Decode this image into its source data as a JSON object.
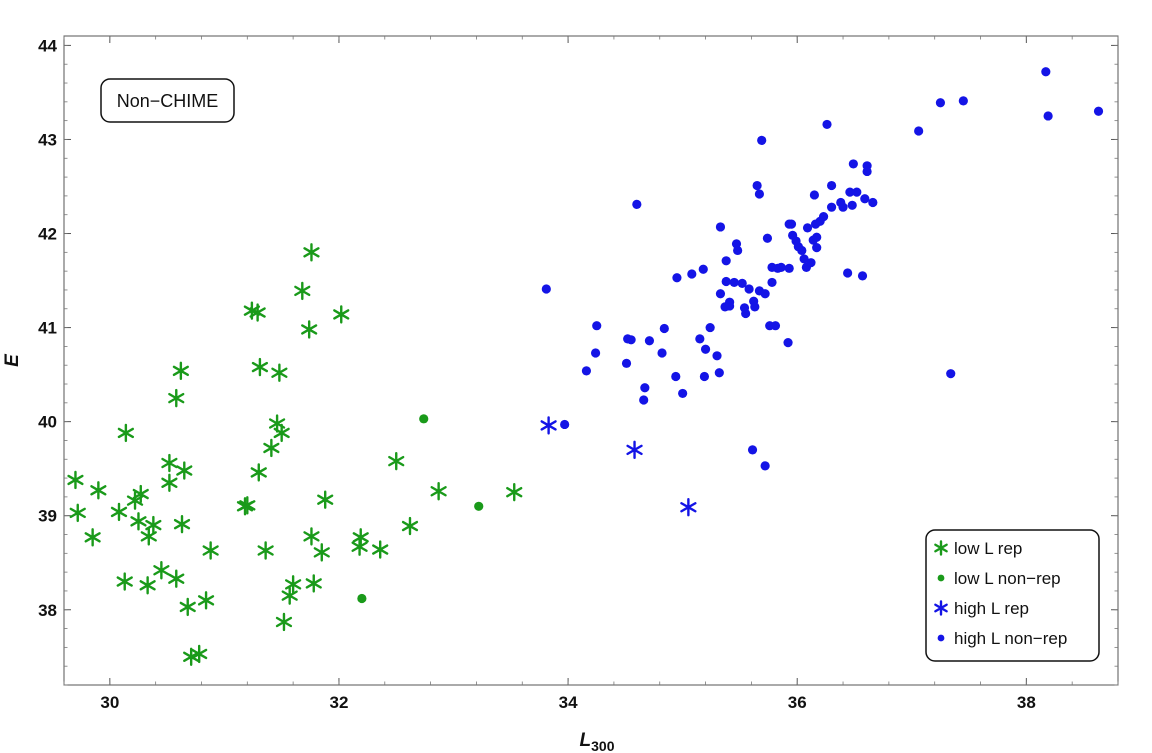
{
  "chart_data": {
    "type": "scatter",
    "title": "",
    "annotation": "Non−CHIME",
    "xlabel": "L",
    "xlabel_sub": "300",
    "ylabel": "E",
    "xlim": [
      29.6,
      38.8
    ],
    "ylim": [
      37.2,
      44.1
    ],
    "xticks": [
      30,
      32,
      34,
      36,
      38
    ],
    "yticks": [
      38,
      39,
      40,
      41,
      42,
      43,
      44
    ],
    "grid": false,
    "legend_position": "bottom-right",
    "series": [
      {
        "name": "low L rep",
        "marker": "star",
        "color": "#1a9a1a",
        "points": [
          [
            29.7,
            39.38
          ],
          [
            29.72,
            39.03
          ],
          [
            29.85,
            38.77
          ],
          [
            29.9,
            39.27
          ],
          [
            30.08,
            39.04
          ],
          [
            30.13,
            38.3
          ],
          [
            30.14,
            39.88
          ],
          [
            30.22,
            39.16
          ],
          [
            30.25,
            38.94
          ],
          [
            30.27,
            39.23
          ],
          [
            30.33,
            38.26
          ],
          [
            30.34,
            38.78
          ],
          [
            30.38,
            38.9
          ],
          [
            30.45,
            38.42
          ],
          [
            30.52,
            39.56
          ],
          [
            30.52,
            39.35
          ],
          [
            30.58,
            38.33
          ],
          [
            30.58,
            40.25
          ],
          [
            30.62,
            40.54
          ],
          [
            30.63,
            38.91
          ],
          [
            30.65,
            39.48
          ],
          [
            30.68,
            38.03
          ],
          [
            30.71,
            37.5
          ],
          [
            30.78,
            37.53
          ],
          [
            30.84,
            38.1
          ],
          [
            30.88,
            38.63
          ],
          [
            31.18,
            39.1
          ],
          [
            31.2,
            39.11
          ],
          [
            31.24,
            41.18
          ],
          [
            31.29,
            41.16
          ],
          [
            31.3,
            39.46
          ],
          [
            31.31,
            40.58
          ],
          [
            31.36,
            38.63
          ],
          [
            31.41,
            39.72
          ],
          [
            31.46,
            39.98
          ],
          [
            31.48,
            40.52
          ],
          [
            31.5,
            39.88
          ],
          [
            31.52,
            37.87
          ],
          [
            31.57,
            38.15
          ],
          [
            31.6,
            38.27
          ],
          [
            31.68,
            41.39
          ],
          [
            31.74,
            40.98
          ],
          [
            31.76,
            41.8
          ],
          [
            31.76,
            38.78
          ],
          [
            31.78,
            38.28
          ],
          [
            31.85,
            38.61
          ],
          [
            31.88,
            39.17
          ],
          [
            32.02,
            41.14
          ],
          [
            32.18,
            38.67
          ],
          [
            32.19,
            38.77
          ],
          [
            32.36,
            38.64
          ],
          [
            32.5,
            39.58
          ],
          [
            32.62,
            38.89
          ],
          [
            32.87,
            39.26
          ],
          [
            33.53,
            39.25
          ]
        ]
      },
      {
        "name": "low L non−rep",
        "marker": "dot",
        "color": "#1a9a1a",
        "points": [
          [
            32.2,
            38.12
          ],
          [
            32.74,
            40.03
          ],
          [
            33.22,
            39.1
          ]
        ]
      },
      {
        "name": "high L rep",
        "marker": "star",
        "color": "#1414e6",
        "points": [
          [
            33.83,
            39.96
          ],
          [
            34.58,
            39.7
          ],
          [
            35.05,
            39.09
          ]
        ]
      },
      {
        "name": "high L non−rep",
        "marker": "dot",
        "color": "#1414e6",
        "points": [
          [
            33.81,
            41.41
          ],
          [
            33.97,
            39.97
          ],
          [
            34.16,
            40.54
          ],
          [
            34.24,
            40.73
          ],
          [
            34.25,
            41.02
          ],
          [
            34.51,
            40.62
          ],
          [
            34.52,
            40.88
          ],
          [
            34.55,
            40.87
          ],
          [
            34.6,
            42.31
          ],
          [
            34.66,
            40.23
          ],
          [
            34.67,
            40.36
          ],
          [
            34.71,
            40.86
          ],
          [
            34.82,
            40.73
          ],
          [
            34.84,
            40.99
          ],
          [
            34.94,
            40.48
          ],
          [
            34.95,
            41.53
          ],
          [
            35.0,
            40.3
          ],
          [
            35.08,
            41.57
          ],
          [
            35.15,
            40.88
          ],
          [
            35.18,
            41.62
          ],
          [
            35.19,
            40.48
          ],
          [
            35.2,
            40.77
          ],
          [
            35.24,
            41.0
          ],
          [
            35.3,
            40.7
          ],
          [
            35.32,
            40.52
          ],
          [
            35.33,
            41.36
          ],
          [
            35.33,
            42.07
          ],
          [
            35.37,
            41.22
          ],
          [
            35.38,
            41.49
          ],
          [
            35.38,
            41.71
          ],
          [
            35.41,
            41.23
          ],
          [
            35.41,
            41.27
          ],
          [
            35.45,
            41.48
          ],
          [
            35.47,
            41.89
          ],
          [
            35.48,
            41.82
          ],
          [
            35.52,
            41.47
          ],
          [
            35.54,
            41.21
          ],
          [
            35.55,
            41.15
          ],
          [
            35.58,
            41.41
          ],
          [
            35.61,
            39.7
          ],
          [
            35.62,
            41.28
          ],
          [
            35.63,
            41.22
          ],
          [
            35.65,
            42.51
          ],
          [
            35.67,
            41.39
          ],
          [
            35.67,
            42.42
          ],
          [
            35.69,
            42.99
          ],
          [
            35.72,
            39.53
          ],
          [
            35.72,
            41.36
          ],
          [
            35.74,
            41.95
          ],
          [
            35.76,
            41.02
          ],
          [
            35.78,
            41.64
          ],
          [
            35.78,
            41.48
          ],
          [
            35.81,
            41.02
          ],
          [
            35.83,
            41.63
          ],
          [
            35.86,
            41.64
          ],
          [
            35.92,
            40.84
          ],
          [
            35.93,
            41.63
          ],
          [
            35.93,
            42.1
          ],
          [
            35.95,
            42.1
          ],
          [
            35.96,
            41.98
          ],
          [
            35.99,
            41.92
          ],
          [
            36.01,
            41.86
          ],
          [
            36.04,
            41.82
          ],
          [
            36.06,
            41.73
          ],
          [
            36.08,
            41.64
          ],
          [
            36.09,
            42.06
          ],
          [
            36.12,
            41.69
          ],
          [
            36.14,
            41.93
          ],
          [
            36.15,
            42.41
          ],
          [
            36.16,
            42.1
          ],
          [
            36.17,
            41.85
          ],
          [
            36.17,
            41.96
          ],
          [
            36.2,
            42.13
          ],
          [
            36.23,
            42.18
          ],
          [
            36.26,
            43.16
          ],
          [
            36.3,
            42.51
          ],
          [
            36.3,
            42.28
          ],
          [
            36.38,
            42.33
          ],
          [
            36.4,
            42.28
          ],
          [
            36.44,
            41.58
          ],
          [
            36.46,
            42.44
          ],
          [
            36.48,
            42.3
          ],
          [
            36.49,
            42.74
          ],
          [
            36.52,
            42.44
          ],
          [
            36.57,
            41.55
          ],
          [
            36.59,
            42.37
          ],
          [
            36.61,
            42.72
          ],
          [
            36.61,
            42.66
          ],
          [
            36.66,
            42.33
          ],
          [
            37.06,
            43.09
          ],
          [
            37.25,
            43.39
          ],
          [
            37.34,
            40.51
          ],
          [
            37.45,
            43.41
          ],
          [
            38.17,
            43.72
          ],
          [
            38.19,
            43.25
          ],
          [
            38.63,
            43.3
          ]
        ]
      }
    ]
  }
}
